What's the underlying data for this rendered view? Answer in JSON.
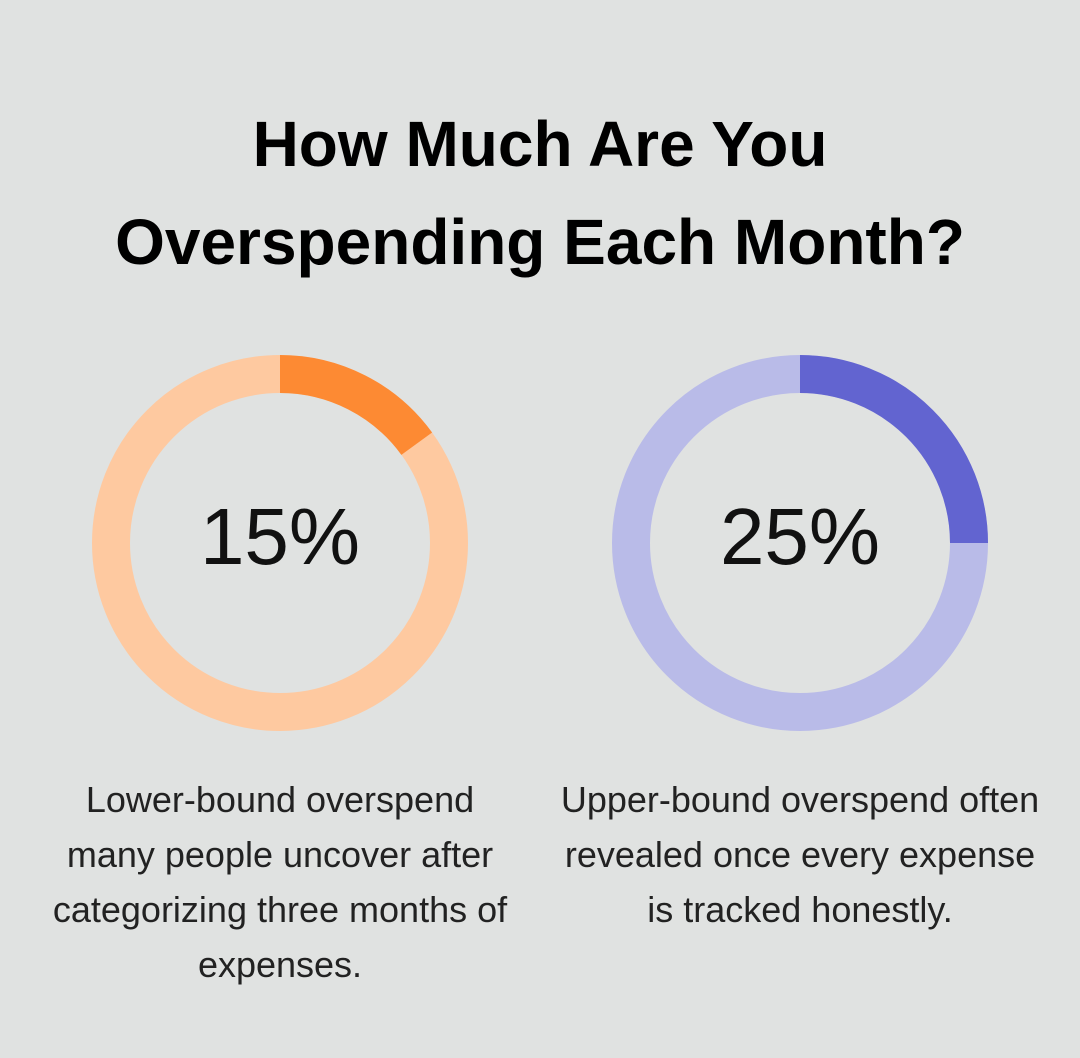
{
  "chart_data": {
    "type": "donut",
    "title": "How Much Are You Overspending Each Month?",
    "ylim": [
      0,
      100
    ],
    "values": [
      15,
      25
    ],
    "value_labels": [
      "15%",
      "25%"
    ],
    "captions": [
      "Lower-bound overspend many people uncover after categorizing three months of expenses.",
      "Upper-bound overspend often revealed once every expense is tracked honestly."
    ],
    "colors": [
      "#fd8a33",
      "#6264d0"
    ],
    "track_colors": [
      "#fec9a0",
      "#b9bbe8"
    ]
  }
}
